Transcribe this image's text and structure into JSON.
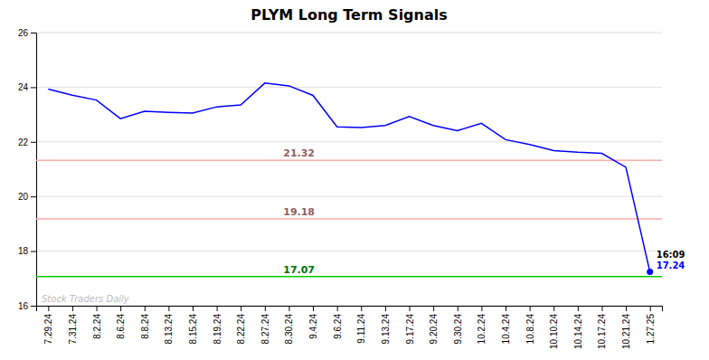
{
  "chart_data": {
    "type": "line",
    "title": "PLYM Long Term Signals",
    "categories": [
      "7.29.24",
      "7.31.24",
      "8.2.24",
      "8.6.24",
      "8.8.24",
      "8.13.24",
      "8.15.24",
      "8.19.24",
      "8.22.24",
      "8.27.24",
      "8.30.24",
      "9.4.24",
      "9.6.24",
      "9.11.24",
      "9.13.24",
      "9.17.24",
      "9.20.24",
      "9.30.24",
      "10.2.24",
      "10.4.24",
      "10.8.24",
      "10.10.24",
      "10.14.24",
      "10.17.24",
      "10.21.24",
      "1.27.25"
    ],
    "values": [
      23.93,
      23.71,
      23.53,
      22.85,
      23.12,
      23.08,
      23.05,
      23.28,
      23.35,
      24.15,
      24.05,
      23.7,
      22.55,
      22.52,
      22.6,
      22.93,
      22.6,
      22.41,
      22.68,
      22.08,
      21.9,
      21.68,
      21.62,
      21.58,
      21.07,
      17.24
    ],
    "color": "#0000ff",
    "hlines": [
      {
        "value": 21.32,
        "label": "21.32",
        "color": "#ffaaaa"
      },
      {
        "value": 19.18,
        "label": "19.18",
        "color": "#ffaaaa"
      },
      {
        "value": 17.07,
        "label": "17.07",
        "color": "#00cc00"
      }
    ],
    "last_point_labels": [
      "16:09",
      "17.24"
    ],
    "watermark": "Stock Traders Daily",
    "ylim": [
      16,
      26
    ],
    "yticks": [
      16,
      18,
      20,
      22,
      24,
      26
    ],
    "grid": true
  }
}
